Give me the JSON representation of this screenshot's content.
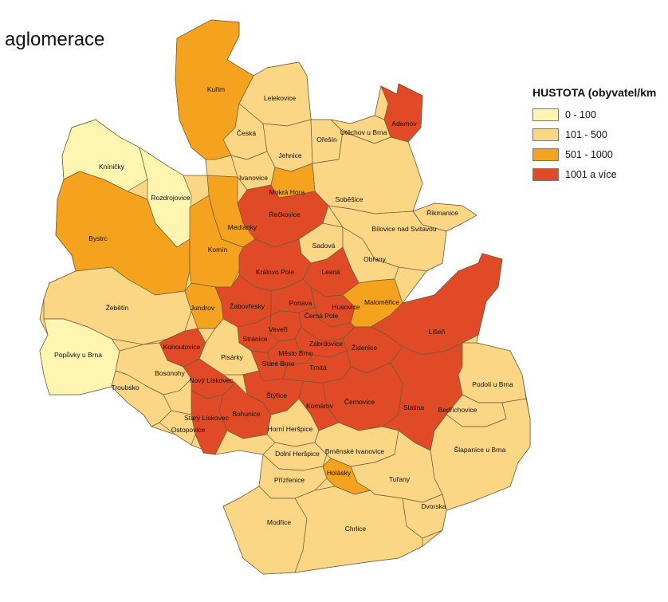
{
  "title": "aglomerace",
  "legend": {
    "title": "HUSTOTA (obyvatel/km",
    "items": [
      {
        "label": "0 - 100",
        "color": "#fdf5b0"
      },
      {
        "label": "101 - 500",
        "color": "#fbd685"
      },
      {
        "label": "501 - 1000",
        "color": "#f5a21e"
      },
      {
        "label": "1001 a více",
        "color": "#e04a26"
      }
    ]
  },
  "colors": {
    "border": "#6b5a3a"
  },
  "districts": [
    {
      "id": "kunim",
      "label": "Kuřim",
      "cls": 2
    },
    {
      "id": "lelekovice",
      "label": "Lelekovice",
      "cls": 1
    },
    {
      "id": "adamov",
      "label": "Adamov",
      "cls": 3
    },
    {
      "id": "ceska",
      "label": "Česká",
      "cls": 1
    },
    {
      "id": "jehnice",
      "label": "Jehnice",
      "cls": 1
    },
    {
      "id": "oresin",
      "label": "Ořešín",
      "cls": 1
    },
    {
      "id": "ubechov",
      "label": "Útěchov u Brna",
      "cls": 1
    },
    {
      "id": "kninicky",
      "label": "Kníničky",
      "cls": 0
    },
    {
      "id": "rozdrojovice",
      "label": "Rozdrojovice",
      "cls": 0
    },
    {
      "id": "ivanovice",
      "label": "Ivanovice",
      "cls": 1
    },
    {
      "id": "mokra-hora",
      "label": "Mokrá Hora",
      "cls": 2
    },
    {
      "id": "sobesice",
      "label": "Soběšice",
      "cls": 1
    },
    {
      "id": "rikmanice",
      "label": "Řikmanice",
      "cls": 1
    },
    {
      "id": "reckovice",
      "label": "Řečkovice",
      "cls": 3
    },
    {
      "id": "medlanky",
      "label": "Medlánky",
      "cls": 2
    },
    {
      "id": "bilovice",
      "label": "Bílovice nad Svitavou",
      "cls": 1
    },
    {
      "id": "bystrc",
      "label": "Bystrc",
      "cls": 2
    },
    {
      "id": "komin",
      "label": "Komín",
      "cls": 2
    },
    {
      "id": "sadova",
      "label": "Sadová",
      "cls": 1
    },
    {
      "id": "obrany",
      "label": "Obřany",
      "cls": 1
    },
    {
      "id": "kralovo-pole",
      "label": "Královo Pole",
      "cls": 3
    },
    {
      "id": "lesna",
      "label": "Lesná",
      "cls": 3
    },
    {
      "id": "zebetin",
      "label": "Žebětín",
      "cls": 1
    },
    {
      "id": "zabovresky",
      "label": "Žabovřesky",
      "cls": 3
    },
    {
      "id": "ponava",
      "label": "Ponava",
      "cls": 3
    },
    {
      "id": "husovice",
      "label": "Husovice",
      "cls": 3
    },
    {
      "id": "malomerice",
      "label": "Maloměřice",
      "cls": 2
    },
    {
      "id": "jundrov",
      "label": "Jundrov",
      "cls": 2
    },
    {
      "id": "cerna-pole",
      "label": "Černá Pole",
      "cls": 3
    },
    {
      "id": "liseni",
      "label": "Líšeň",
      "cls": 3
    },
    {
      "id": "veveri",
      "label": "Veveří",
      "cls": 3
    },
    {
      "id": "kohoutovice",
      "label": "Kohoutovice",
      "cls": 3
    },
    {
      "id": "stranice",
      "label": "Stránice",
      "cls": 3
    },
    {
      "id": "zabrdovice",
      "label": "Zábrdovice",
      "cls": 3
    },
    {
      "id": "zidenice",
      "label": "Židenice",
      "cls": 3
    },
    {
      "id": "popuvky",
      "label": "Popůvky u Brna",
      "cls": 0
    },
    {
      "id": "pisarky",
      "label": "Pisárky",
      "cls": 1
    },
    {
      "id": "mesto-brno",
      "label": "Město Brno",
      "cls": 3
    },
    {
      "id": "stare-brno",
      "label": "Staré Brno",
      "cls": 3
    },
    {
      "id": "trnita",
      "label": "Trnitá",
      "cls": 3
    },
    {
      "id": "bosonohy",
      "label": "Bosonohy",
      "cls": 1
    },
    {
      "id": "novy-liskovec",
      "label": "Nový Lískovec",
      "cls": 3
    },
    {
      "id": "troubsko",
      "label": "Troubsko",
      "cls": 1
    },
    {
      "id": "podoli",
      "label": "Podolí u Brna",
      "cls": 1
    },
    {
      "id": "styrice",
      "label": "Štýřice",
      "cls": 3
    },
    {
      "id": "cernovice",
      "label": "Černovice",
      "cls": 3
    },
    {
      "id": "komarov",
      "label": "Komárov",
      "cls": 3
    },
    {
      "id": "slatina",
      "label": "Slatina",
      "cls": 3
    },
    {
      "id": "bohunice",
      "label": "Bohunice",
      "cls": 3
    },
    {
      "id": "bedrichovice",
      "label": "Bedřichovice",
      "cls": 1
    },
    {
      "id": "stary-liskovec",
      "label": "Starý Lískovec",
      "cls": 3
    },
    {
      "id": "ostopovice",
      "label": "Ostopovice",
      "cls": 1
    },
    {
      "id": "horni-herspice",
      "label": "Horní Heršpice",
      "cls": 1
    },
    {
      "id": "slapanice",
      "label": "Šlapanice u Brna",
      "cls": 1
    },
    {
      "id": "dolni-herspice",
      "label": "Dolní Heršpice",
      "cls": 1
    },
    {
      "id": "brnenske-ivanovice",
      "label": "Brněnské Ivanovice",
      "cls": 1
    },
    {
      "id": "holasky",
      "label": "Holásky",
      "cls": 2
    },
    {
      "id": "turany",
      "label": "Tuřany",
      "cls": 1
    },
    {
      "id": "prizrenice",
      "label": "Přízřenice",
      "cls": 1
    },
    {
      "id": "dvorska",
      "label": "Dvorska",
      "cls": 1
    },
    {
      "id": "modrice",
      "label": "Modřice",
      "cls": 1
    },
    {
      "id": "chrlice",
      "label": "Chrlice",
      "cls": 1
    }
  ]
}
